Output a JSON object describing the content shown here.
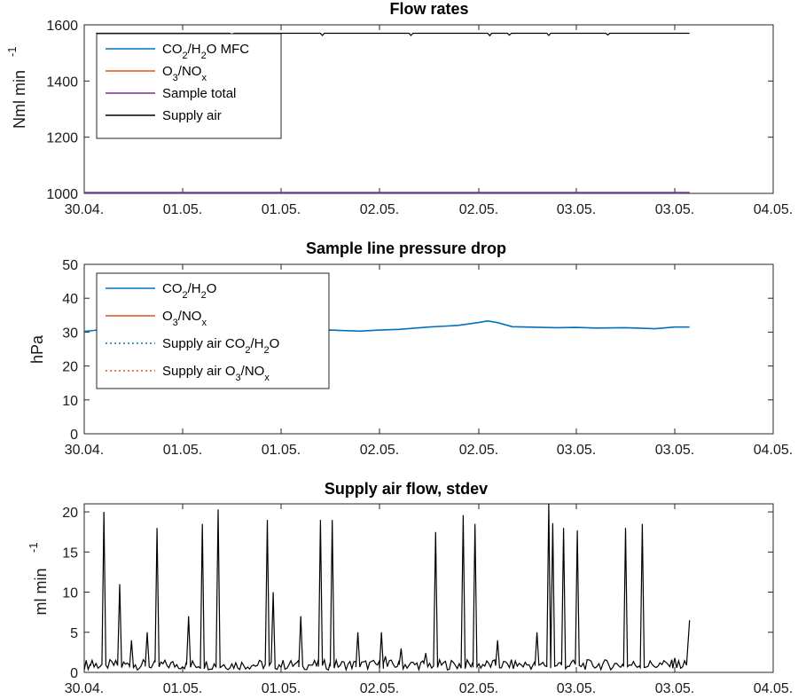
{
  "chart_data": [
    {
      "type": "line",
      "title": "Flow rates",
      "ylabel": "Nml min",
      "ylabel_exp": "-1",
      "xlim": [
        0,
        7
      ],
      "ylim": [
        1000,
        1600
      ],
      "yticks": [
        1000,
        1200,
        1400,
        1600
      ],
      "x_tick_labels": [
        "30.04.",
        "01.05.",
        "01.05.",
        "02.05.",
        "02.05.",
        "03.05.",
        "03.05.",
        "04.05."
      ],
      "legend_position": "top-left",
      "legend": [
        {
          "text": "CO",
          "sub1": "2",
          "mid": "/H",
          "sub2": "2",
          "tail": "O MFC"
        },
        {
          "text": "O",
          "sub1": "3",
          "mid": "/NO",
          "sub2": "x",
          "tail": ""
        },
        {
          "text": "Sample total",
          "sub1": "",
          "mid": "",
          "sub2": "",
          "tail": ""
        },
        {
          "text": "Supply air",
          "sub1": "",
          "mid": "",
          "sub2": "",
          "tail": ""
        }
      ],
      "series": [
        {
          "color": "#0072bd",
          "style": "solid",
          "x": [
            0,
            6.15
          ],
          "y": [
            1003,
            1003
          ]
        },
        {
          "color": "#d95319",
          "style": "solid",
          "x": [
            0,
            6.15
          ],
          "y": [
            1002,
            1002
          ]
        },
        {
          "color": "#7e2f8e",
          "style": "solid",
          "x": [
            0,
            6.15
          ],
          "y": [
            1002,
            1002
          ]
        },
        {
          "color": "#000000",
          "style": "solid",
          "x": [
            0.12,
            0.5,
            1.0,
            1.48,
            1.5,
            1.52,
            1.8,
            2.4,
            2.42,
            2.44,
            2.9,
            3.3,
            3.32,
            3.34,
            3.9,
            4.1,
            4.12,
            4.14,
            4.3,
            4.32,
            4.34,
            4.7,
            4.72,
            4.74,
            5.3,
            5.32,
            5.34,
            5.7,
            6.15
          ],
          "y": [
            1570,
            1570,
            1570,
            1570,
            1561,
            1570,
            1570,
            1570,
            1562,
            1570,
            1570,
            1570,
            1562,
            1570,
            1570,
            1570,
            1561,
            1570,
            1570,
            1563,
            1570,
            1570,
            1562,
            1570,
            1570,
            1564,
            1570,
            1570,
            1570
          ]
        }
      ]
    },
    {
      "type": "line",
      "title": "Sample line pressure drop",
      "ylabel": "hPa",
      "xlim": [
        0,
        7
      ],
      "ylim": [
        0,
        50
      ],
      "yticks": [
        0,
        10,
        20,
        30,
        40,
        50
      ],
      "x_tick_labels": [
        "30.04.",
        "01.05.",
        "01.05.",
        "02.05.",
        "02.05.",
        "03.05.",
        "03.05.",
        "04.05."
      ],
      "legend_position": "top-left",
      "legend": [
        {
          "text": "CO",
          "sub1": "2",
          "mid": "/H",
          "sub2": "2",
          "tail": "O",
          "style": "solid",
          "color": "#0072bd"
        },
        {
          "text": "O",
          "sub1": "3",
          "mid": "/NO",
          "sub2": "x",
          "tail": "",
          "style": "solid",
          "color": "#d95319"
        },
        {
          "text": "Supply air CO",
          "sub1": "2",
          "mid": "/H",
          "sub2": "2",
          "tail": "O",
          "style": "dotted",
          "color": "#0072bd"
        },
        {
          "text": "Supply air O",
          "sub1": "3",
          "mid": "/NO",
          "sub2": "x",
          "tail": "",
          "style": "dotted",
          "color": "#d95319"
        }
      ],
      "series": [
        {
          "color": "#0072bd",
          "style": "solid",
          "x": [
            0,
            0.1,
            0.2,
            0.3,
            0.5,
            0.8,
            1.0,
            1.2,
            1.4,
            1.6,
            1.8,
            2.0,
            2.2,
            2.5,
            2.8,
            3.0,
            3.2,
            3.5,
            3.8,
            4.0,
            4.1,
            4.2,
            4.35,
            4.5,
            4.8,
            5.0,
            5.2,
            5.5,
            5.8,
            6.0,
            6.15
          ],
          "y": [
            30.2,
            30.5,
            31.0,
            30.8,
            31.2,
            31.0,
            31.3,
            31.0,
            31.5,
            31.8,
            31.2,
            30.8,
            30.4,
            30.6,
            30.3,
            30.6,
            30.8,
            31.5,
            32.0,
            32.8,
            33.3,
            32.8,
            31.6,
            31.5,
            31.3,
            31.4,
            31.2,
            31.3,
            31.0,
            31.5,
            31.5
          ]
        }
      ]
    },
    {
      "type": "line",
      "title": "Supply air flow, stdev",
      "ylabel": "ml min",
      "ylabel_exp": "-1",
      "xlim": [
        0,
        7
      ],
      "ylim": [
        0,
        21
      ],
      "yticks": [
        0,
        5,
        10,
        15,
        20
      ],
      "x_tick_labels": [
        "30.04.",
        "01.05.",
        "01.05.",
        "02.05.",
        "02.05.",
        "03.05.",
        "03.05.",
        "04.05."
      ],
      "series": [
        {
          "color": "#000000",
          "style": "solid",
          "spikes": [
            [
              0.08,
              1.5
            ],
            [
              0.2,
              20
            ],
            [
              0.36,
              11
            ],
            [
              0.48,
              4
            ],
            [
              0.64,
              5
            ],
            [
              0.74,
              18
            ],
            [
              1.06,
              7
            ],
            [
              1.2,
              18.5
            ],
            [
              1.36,
              20.3
            ],
            [
              1.86,
              19
            ],
            [
              1.92,
              10
            ],
            [
              2.2,
              7
            ],
            [
              2.4,
              19
            ],
            [
              2.52,
              19
            ],
            [
              2.78,
              5
            ],
            [
              3.02,
              5
            ],
            [
              3.06,
              2
            ],
            [
              3.22,
              3
            ],
            [
              3.47,
              2.4
            ],
            [
              3.57,
              17.5
            ],
            [
              3.85,
              19.6
            ],
            [
              3.97,
              18.5
            ],
            [
              4.2,
              4
            ],
            [
              4.6,
              5
            ],
            [
              4.72,
              21
            ],
            [
              4.76,
              18.6
            ],
            [
              4.87,
              18
            ],
            [
              5.01,
              17.7
            ],
            [
              5.5,
              18
            ],
            [
              5.67,
              18.5
            ],
            [
              6.0,
              1.8
            ]
          ],
          "end": [
            6.15,
            6.5
          ]
        }
      ]
    }
  ]
}
